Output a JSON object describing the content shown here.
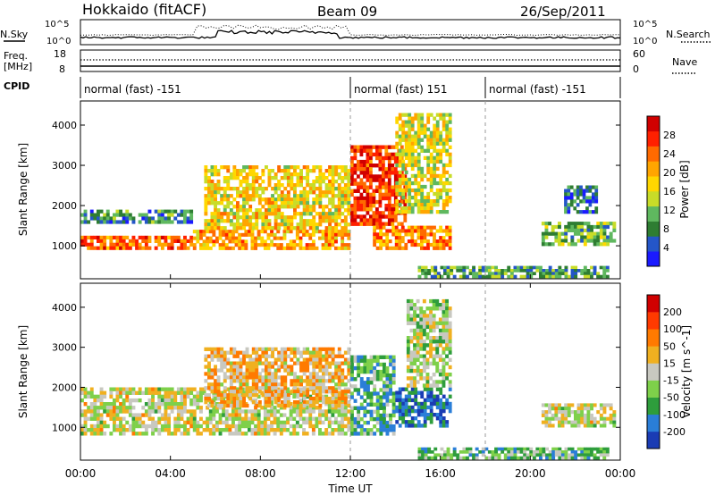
{
  "header": {
    "site": "Hokkaido (fitACF)",
    "beam": "Beam 09",
    "date": "26/Sep/2011"
  },
  "top_panels": {
    "nsky_label": "N.Sky",
    "nsearch_label": "N.Search",
    "noise_left_ticks": [
      "10^5",
      "10^0"
    ],
    "noise_right_ticks": [
      "10^5",
      "10^0"
    ],
    "freq_label_1": "Freq.",
    "freq_label_2": "[MHz]",
    "freq_ticks": [
      "18",
      "8"
    ],
    "nave_label": "Nave",
    "nave_ticks": [
      "60",
      "0"
    ],
    "cpid_label": "CPID",
    "cpid_segments": [
      {
        "label": "normal (fast) -151",
        "start": 0,
        "end": 12
      },
      {
        "label": "normal (fast) 151",
        "start": 12,
        "end": 18
      },
      {
        "label": "normal (fast) -151",
        "start": 18,
        "end": 24
      }
    ]
  },
  "power_panel": {
    "ylabel": "Slant Range [km]",
    "yticks": [
      "4000",
      "3000",
      "2000",
      "1000"
    ],
    "colorbar_label": "Power [dB]",
    "colorbar_ticks": [
      "28",
      "24",
      "20",
      "16",
      "12",
      "8",
      "4"
    ],
    "colors": [
      "#1a1aff",
      "#2456c8",
      "#2e7d32",
      "#5fb85f",
      "#c8dc28",
      "#ffd700",
      "#ffa500",
      "#ff6a00",
      "#ff2000",
      "#d00000"
    ]
  },
  "velocity_panel": {
    "ylabel": "Slant Range [km]",
    "yticks": [
      "4000",
      "3000",
      "2000",
      "1000"
    ],
    "colorbar_label": "Velocity [m s^-1]",
    "colorbar_ticks": [
      "200",
      "100",
      "50",
      "15",
      "-15",
      "-50",
      "-100",
      "-200"
    ],
    "colors": [
      "#1a3cb4",
      "#2a7ed8",
      "#2e9d3c",
      "#7ed04a",
      "#c8c8c0",
      "#f0b020",
      "#ff7a00",
      "#ff3a00",
      "#d00000"
    ]
  },
  "x_axis": {
    "label": "Time UT",
    "ticks": [
      "00:00",
      "04:00",
      "08:00",
      "12:00",
      "16:00",
      "20:00",
      "00:00"
    ]
  },
  "chart_data": {
    "type": "heatmap",
    "x_range_hours": [
      0,
      24
    ],
    "y_range_km": [
      180,
      4600
    ],
    "power_features": [
      {
        "t0": 0.0,
        "t1": 5.0,
        "r0": 900,
        "r1": 1250,
        "level": 0.75
      },
      {
        "t0": 0.0,
        "t1": 5.0,
        "r0": 1550,
        "r1": 1900,
        "level": 0.25
      },
      {
        "t0": 5.0,
        "t1": 12.0,
        "r0": 900,
        "r1": 1400,
        "level": 0.65
      },
      {
        "t0": 5.5,
        "t1": 12.0,
        "r0": 1400,
        "r1": 3000,
        "level": 0.55
      },
      {
        "t0": 12.0,
        "t1": 14.5,
        "r0": 1500,
        "r1": 3500,
        "level": 0.85
      },
      {
        "t0": 13.0,
        "t1": 16.5,
        "r0": 900,
        "r1": 1500,
        "level": 0.7
      },
      {
        "t0": 14.0,
        "t1": 16.5,
        "r0": 1800,
        "r1": 4300,
        "level": 0.5
      },
      {
        "t0": 20.5,
        "t1": 23.8,
        "r0": 1000,
        "r1": 1600,
        "level": 0.35
      },
      {
        "t0": 21.5,
        "t1": 23.0,
        "r0": 1800,
        "r1": 2500,
        "level": 0.2
      },
      {
        "t0": 15.0,
        "t1": 23.5,
        "r0": 200,
        "r1": 500,
        "level": 0.3
      }
    ],
    "velocity_features": [
      {
        "t0": 0.0,
        "t1": 12.0,
        "r0": 800,
        "r1": 2000,
        "level": 0.5
      },
      {
        "t0": 5.5,
        "t1": 12.0,
        "r0": 1500,
        "r1": 3000,
        "level": 0.6
      },
      {
        "t0": 12.0,
        "t1": 14.0,
        "r0": 800,
        "r1": 2800,
        "level": 0.3
      },
      {
        "t0": 14.0,
        "t1": 16.5,
        "r0": 1000,
        "r1": 2000,
        "level": 0.15
      },
      {
        "t0": 14.5,
        "t1": 16.5,
        "r0": 2000,
        "r1": 4200,
        "level": 0.45
      },
      {
        "t0": 20.5,
        "t1": 23.8,
        "r0": 1000,
        "r1": 1600,
        "level": 0.5
      },
      {
        "t0": 15.0,
        "t1": 23.5,
        "r0": 200,
        "r1": 500,
        "level": 0.35
      }
    ]
  }
}
